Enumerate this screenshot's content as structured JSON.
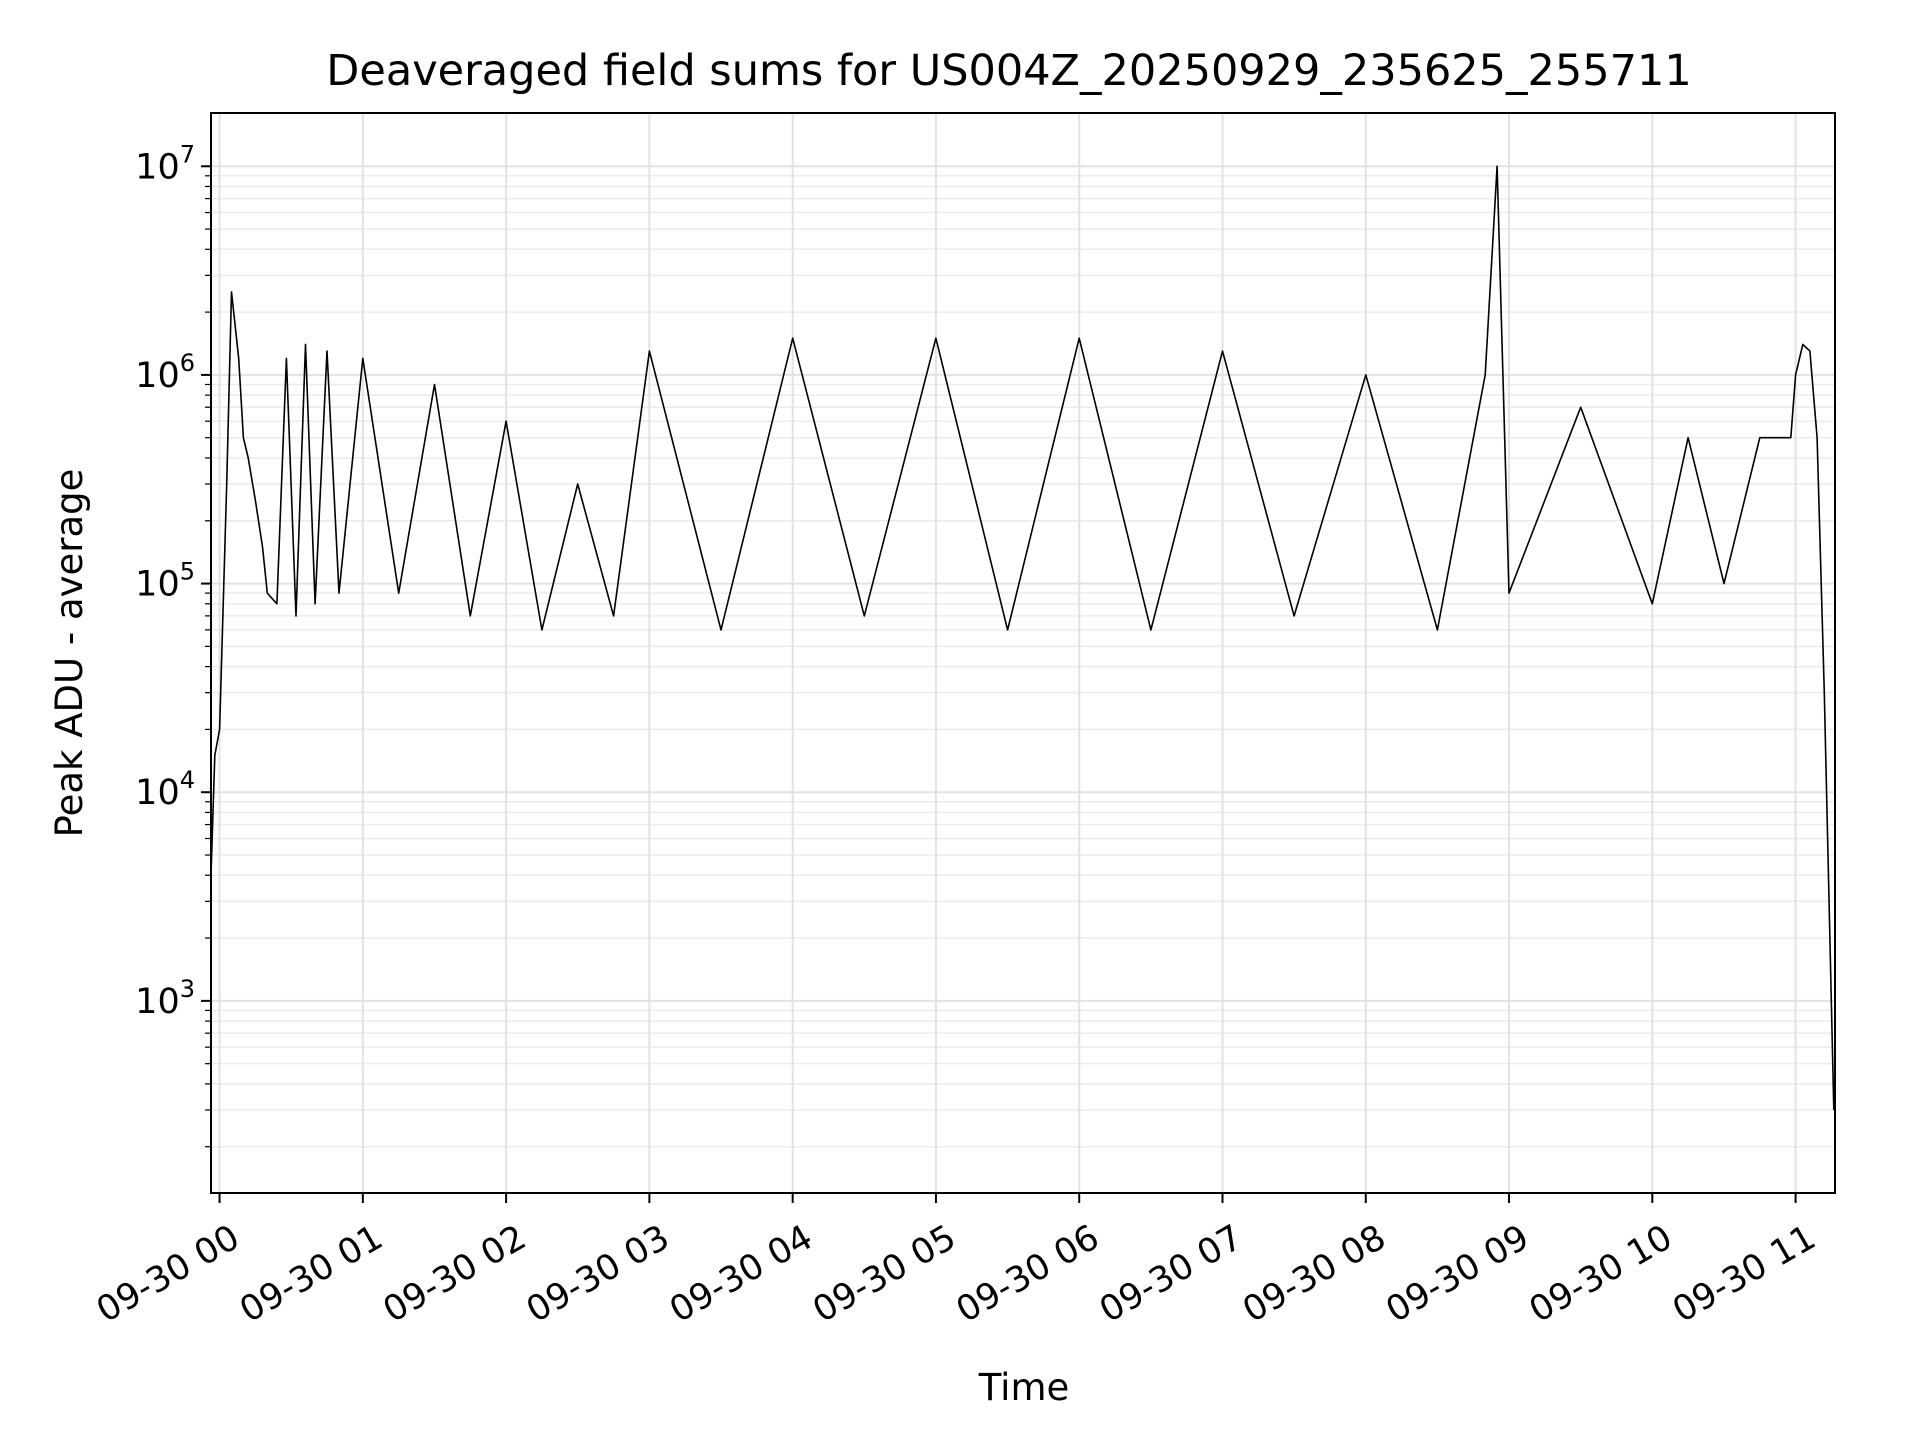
{
  "chart_data": {
    "type": "line",
    "title": "Deaveraged field sums for US004Z_20250929_235625_255711",
    "xlabel": "Time",
    "ylabel": "Peak ADU - average",
    "yscale": "log",
    "ylim": [
      120,
      18000000
    ],
    "xlim": [
      "2025-09-29 23:56:25",
      "2025-09-30 11:16:30"
    ],
    "grid": true,
    "line_color": "#000000",
    "x_ticks": [
      {
        "value": "2025-09-30 00:00",
        "label": "09-30 00"
      },
      {
        "value": "2025-09-30 01:00",
        "label": "09-30 01"
      },
      {
        "value": "2025-09-30 02:00",
        "label": "09-30 02"
      },
      {
        "value": "2025-09-30 03:00",
        "label": "09-30 03"
      },
      {
        "value": "2025-09-30 04:00",
        "label": "09-30 04"
      },
      {
        "value": "2025-09-30 05:00",
        "label": "09-30 05"
      },
      {
        "value": "2025-09-30 06:00",
        "label": "09-30 06"
      },
      {
        "value": "2025-09-30 07:00",
        "label": "09-30 07"
      },
      {
        "value": "2025-09-30 08:00",
        "label": "09-30 08"
      },
      {
        "value": "2025-09-30 09:00",
        "label": "09-30 09"
      },
      {
        "value": "2025-09-30 10:00",
        "label": "09-30 10"
      },
      {
        "value": "2025-09-30 11:00",
        "label": "09-30 11"
      }
    ],
    "y_ticks": [
      {
        "value": 1000,
        "base": "10",
        "exp": "3"
      },
      {
        "value": 10000,
        "base": "10",
        "exp": "4"
      },
      {
        "value": 100000,
        "base": "10",
        "exp": "5"
      },
      {
        "value": 1000000,
        "base": "10",
        "exp": "6"
      },
      {
        "value": 10000000,
        "base": "10",
        "exp": "7"
      }
    ],
    "series": [
      {
        "x": [
          "2025-09-29 23:56:25",
          "2025-09-29 23:58:00",
          "2025-09-30 00:00:00",
          "2025-09-30 00:03:00",
          "2025-09-30 00:05:00",
          "2025-09-30 00:08:00",
          "2025-09-30 00:10:00",
          "2025-09-30 00:12:00",
          "2025-09-30 00:15:00",
          "2025-09-30 00:18:00",
          "2025-09-30 00:20:00",
          "2025-09-30 00:24:00",
          "2025-09-30 00:28:00",
          "2025-09-30 00:32:00",
          "2025-09-30 00:36:00",
          "2025-09-30 00:40:00",
          "2025-09-30 00:45:00",
          "2025-09-30 00:50:00",
          "2025-09-30 01:00:00",
          "2025-09-30 01:15:00",
          "2025-09-30 01:30:00",
          "2025-09-30 01:45:00",
          "2025-09-30 02:00:00",
          "2025-09-30 02:15:00",
          "2025-09-30 02:30:00",
          "2025-09-30 02:45:00",
          "2025-09-30 03:00:00",
          "2025-09-30 03:30:00",
          "2025-09-30 04:00:00",
          "2025-09-30 04:30:00",
          "2025-09-30 05:00:00",
          "2025-09-30 05:30:00",
          "2025-09-30 06:00:00",
          "2025-09-30 06:30:00",
          "2025-09-30 07:00:00",
          "2025-09-30 07:30:00",
          "2025-09-30 08:00:00",
          "2025-09-30 08:30:00",
          "2025-09-30 08:50:00",
          "2025-09-30 08:55:00",
          "2025-09-30 09:00:00",
          "2025-09-30 09:30:00",
          "2025-09-30 10:00:00",
          "2025-09-30 10:15:00",
          "2025-09-30 10:30:00",
          "2025-09-30 10:45:00",
          "2025-09-30 10:58:00",
          "2025-09-30 11:00:00",
          "2025-09-30 11:03:00",
          "2025-09-30 11:06:00",
          "2025-09-30 11:09:00",
          "2025-09-30 11:12:00",
          "2025-09-30 11:16:00"
        ],
        "y": [
          4000,
          15000,
          20000,
          300000,
          2500000,
          1200000,
          500000,
          400000,
          250000,
          150000,
          90000,
          80000,
          1200000,
          70000,
          1400000,
          80000,
          1300000,
          90000,
          1200000,
          90000,
          900000,
          70000,
          600000,
          60000,
          300000,
          70000,
          1300000,
          60000,
          1500000,
          70000,
          1500000,
          60000,
          1500000,
          60000,
          1300000,
          70000,
          1000000,
          60000,
          1000000,
          10000000,
          90000,
          700000,
          80000,
          500000,
          100000,
          500000,
          500000,
          1000000,
          1400000,
          1300000,
          500000,
          30000,
          300
        ]
      }
    ]
  }
}
